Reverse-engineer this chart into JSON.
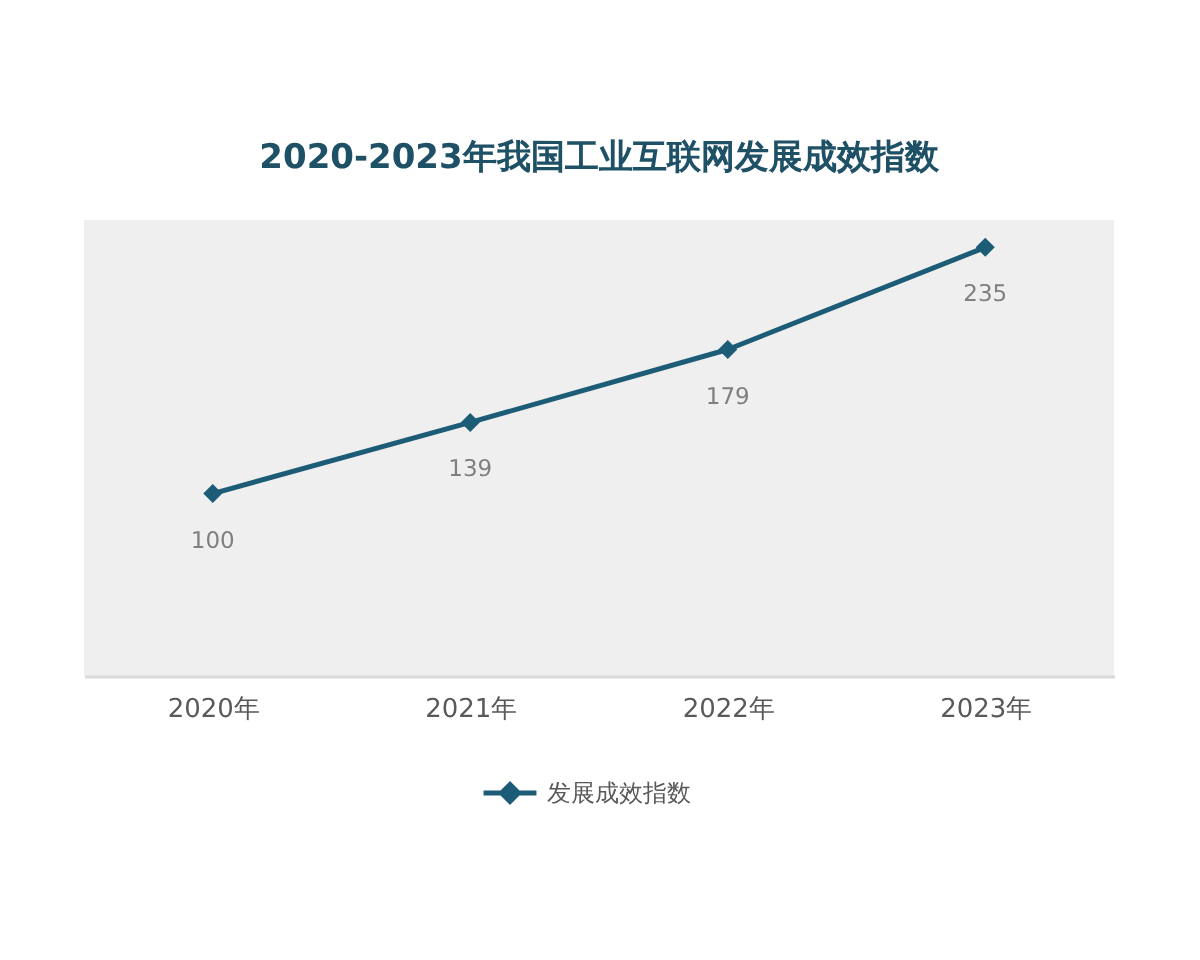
{
  "chart_data": {
    "type": "line",
    "title": "2020-2023年我国工业互联网发展成效指数",
    "categories": [
      "2020年",
      "2021年",
      "2022年",
      "2023年"
    ],
    "series": [
      {
        "name": "发展成效指数",
        "color": "#1d5c76",
        "values": [
          100,
          139,
          179,
          235
        ]
      }
    ],
    "ylim": [
      0,
      250
    ],
    "tick_labels": "x",
    "grid": false,
    "legend": "bottom",
    "marker": "diamond",
    "line_style": "solid",
    "data_labels": true
  }
}
